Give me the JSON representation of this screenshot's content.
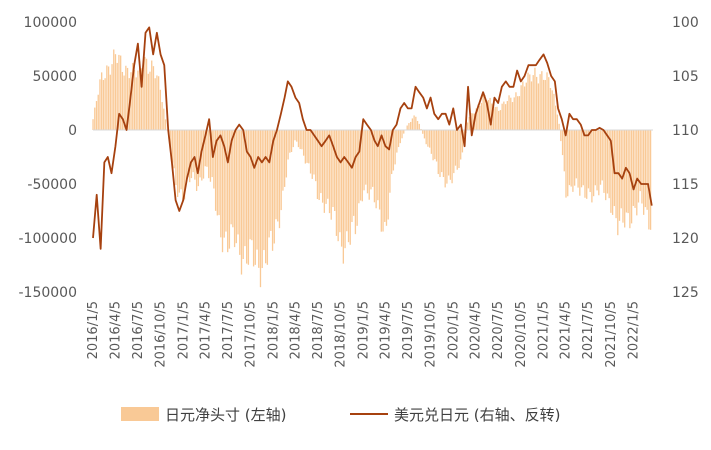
{
  "chart_data": {
    "type": "bar+line",
    "legend": {
      "placement": "bottom",
      "items": [
        {
          "name": "日元净头寸 (左轴)",
          "type": "bar",
          "color": "#f9c996"
        },
        {
          "name": "美元兑日元 (右轴、反转)",
          "type": "line",
          "color": "#a6410f"
        }
      ]
    },
    "x_axis": {
      "tick_labels": [
        "2016/1/5",
        "2016/4/5",
        "2016/7/5",
        "2016/10/5",
        "2017/1/5",
        "2017/4/5",
        "2017/7/5",
        "2017/10/5",
        "2018/1/5",
        "2018/4/5",
        "2018/7/5",
        "2018/10/5",
        "2019/1/5",
        "2019/4/5",
        "2019/7/5",
        "2019/10/5",
        "2020/1/5",
        "2020/4/5",
        "2020/7/5",
        "2020/10/5",
        "2021/1/5",
        "2021/4/5",
        "2021/7/5",
        "2021/10/5",
        "2022/1/5"
      ]
    },
    "y_left": {
      "range": [
        -150000,
        100000
      ],
      "ticks": [
        100000,
        50000,
        0,
        -50000,
        -100000,
        -150000
      ],
      "tick_labels": [
        "100000",
        "50000",
        "0",
        "-50000",
        "-100000",
        "-150000"
      ]
    },
    "y_right": {
      "range": [
        100,
        125
      ],
      "reversed": true,
      "ticks": [
        100,
        105,
        110,
        115,
        120,
        125
      ],
      "tick_labels": [
        "100",
        "105",
        "110",
        "115",
        "120",
        "125"
      ]
    },
    "bar_series": {
      "name": "日元净头寸 (左轴)",
      "note": "weekly net position, read at quarterly dates",
      "points": [
        [
          "2016/1/5",
          10000
        ],
        [
          "2016/2/5",
          45000
        ],
        [
          "2016/3/5",
          60000
        ],
        [
          "2016/4/5",
          68000
        ],
        [
          "2016/5/5",
          55000
        ],
        [
          "2016/6/5",
          60000
        ],
        [
          "2016/7/5",
          50000
        ],
        [
          "2016/8/5",
          65000
        ],
        [
          "2016/9/5",
          60000
        ],
        [
          "2016/10/5",
          35000
        ],
        [
          "2016/11/5",
          -5000
        ],
        [
          "2016/12/5",
          -50000
        ],
        [
          "2017/1/5",
          -60000
        ],
        [
          "2017/2/5",
          -45000
        ],
        [
          "2017/3/5",
          -50000
        ],
        [
          "2017/4/5",
          -35000
        ],
        [
          "2017/5/5",
          -55000
        ],
        [
          "2017/6/5",
          -90000
        ],
        [
          "2017/7/5",
          -110000
        ],
        [
          "2017/8/5",
          -100000
        ],
        [
          "2017/9/5",
          -115000
        ],
        [
          "2017/10/5",
          -120000
        ],
        [
          "2017/11/5",
          -125000
        ],
        [
          "2017/12/5",
          -115000
        ],
        [
          "2018/1/5",
          -110000
        ],
        [
          "2018/2/5",
          -70000
        ],
        [
          "2018/3/5",
          -30000
        ],
        [
          "2018/4/5",
          -10000
        ],
        [
          "2018/5/5",
          -20000
        ],
        [
          "2018/6/5",
          -40000
        ],
        [
          "2018/7/5",
          -60000
        ],
        [
          "2018/8/5",
          -65000
        ],
        [
          "2018/9/5",
          -85000
        ],
        [
          "2018/10/5",
          -105000
        ],
        [
          "2018/11/5",
          -100000
        ],
        [
          "2018/12/5",
          -95000
        ],
        [
          "2019/1/5",
          -50000
        ],
        [
          "2019/2/5",
          -60000
        ],
        [
          "2019/3/5",
          -75000
        ],
        [
          "2019/4/5",
          -90000
        ],
        [
          "2019/5/5",
          -40000
        ],
        [
          "2019/6/5",
          -10000
        ],
        [
          "2019/7/5",
          5000
        ],
        [
          "2019/8/5",
          15000
        ],
        [
          "2019/9/5",
          -5000
        ],
        [
          "2019/10/5",
          -20000
        ],
        [
          "2019/11/5",
          -40000
        ],
        [
          "2019/12/5",
          -45000
        ],
        [
          "2020/1/5",
          -45000
        ],
        [
          "2020/2/5",
          -30000
        ],
        [
          "2020/3/5",
          10000
        ],
        [
          "2020/4/5",
          20000
        ],
        [
          "2020/5/5",
          30000
        ],
        [
          "2020/6/5",
          25000
        ],
        [
          "2020/7/5",
          20000
        ],
        [
          "2020/8/5",
          25000
        ],
        [
          "2020/9/5",
          30000
        ],
        [
          "2020/10/5",
          40000
        ],
        [
          "2020/11/5",
          45000
        ],
        [
          "2020/12/5",
          55000
        ],
        [
          "2021/1/5",
          50000
        ],
        [
          "2021/2/5",
          40000
        ],
        [
          "2021/3/5",
          15000
        ],
        [
          "2021/4/5",
          -55000
        ],
        [
          "2021/5/5",
          -50000
        ],
        [
          "2021/6/5",
          -60000
        ],
        [
          "2021/7/5",
          -55000
        ],
        [
          "2021/8/5",
          -60000
        ],
        [
          "2021/9/5",
          -55000
        ],
        [
          "2021/10/5",
          -65000
        ],
        [
          "2021/11/5",
          -95000
        ],
        [
          "2021/12/5",
          -80000
        ],
        [
          "2022/1/5",
          -75000
        ],
        [
          "2022/2/5",
          -70000
        ],
        [
          "2022/3/5",
          -80000
        ]
      ]
    },
    "line_series": {
      "name": "美元兑日元 (右轴、反转)",
      "points": [
        [
          "2016/1/5",
          120
        ],
        [
          "2016/1/20",
          116
        ],
        [
          "2016/2/5",
          121
        ],
        [
          "2016/2/20",
          113
        ],
        [
          "2016/3/5",
          112.5
        ],
        [
          "2016/3/20",
          114
        ],
        [
          "2016/4/5",
          111.5
        ],
        [
          "2016/4/20",
          108.5
        ],
        [
          "2016/5/5",
          109
        ],
        [
          "2016/5/20",
          110
        ],
        [
          "2016/6/5",
          107
        ],
        [
          "2016/6/20",
          104
        ],
        [
          "2016/7/5",
          102
        ],
        [
          "2016/7/20",
          106
        ],
        [
          "2016/8/5",
          101
        ],
        [
          "2016/8/20",
          100.5
        ],
        [
          "2016/9/5",
          103
        ],
        [
          "2016/9/20",
          101
        ],
        [
          "2016/10/5",
          103
        ],
        [
          "2016/10/20",
          104
        ],
        [
          "2016/11/5",
          110
        ],
        [
          "2016/11/20",
          113
        ],
        [
          "2016/12/5",
          116.5
        ],
        [
          "2016/12/20",
          117.5
        ],
        [
          "2017/1/5",
          116.5
        ],
        [
          "2017/1/20",
          114.5
        ],
        [
          "2017/2/5",
          113
        ],
        [
          "2017/2/20",
          112.5
        ],
        [
          "2017/3/5",
          114
        ],
        [
          "2017/3/20",
          112
        ],
        [
          "2017/4/5",
          110.5
        ],
        [
          "2017/4/20",
          109
        ],
        [
          "2017/5/5",
          112.5
        ],
        [
          "2017/5/20",
          111
        ],
        [
          "2017/6/5",
          110.5
        ],
        [
          "2017/6/20",
          111.5
        ],
        [
          "2017/7/5",
          113
        ],
        [
          "2017/7/20",
          111
        ],
        [
          "2017/8/5",
          110
        ],
        [
          "2017/8/20",
          109.5
        ],
        [
          "2017/9/5",
          110
        ],
        [
          "2017/9/20",
          112
        ],
        [
          "2017/10/5",
          112.5
        ],
        [
          "2017/10/20",
          113.5
        ],
        [
          "2017/11/5",
          112.5
        ],
        [
          "2017/11/20",
          113
        ],
        [
          "2017/12/5",
          112.5
        ],
        [
          "2017/12/20",
          113
        ],
        [
          "2018/1/5",
          111
        ],
        [
          "2018/1/20",
          110
        ],
        [
          "2018/2/5",
          108.5
        ],
        [
          "2018/2/20",
          107
        ],
        [
          "2018/3/5",
          105.5
        ],
        [
          "2018/3/20",
          106
        ],
        [
          "2018/4/5",
          107
        ],
        [
          "2018/4/20",
          107.5
        ],
        [
          "2018/5/5",
          109
        ],
        [
          "2018/5/20",
          110
        ],
        [
          "2018/6/5",
          110
        ],
        [
          "2018/6/20",
          110.5
        ],
        [
          "2018/7/5",
          111
        ],
        [
          "2018/7/20",
          111.5
        ],
        [
          "2018/8/5",
          111
        ],
        [
          "2018/8/20",
          110.5
        ],
        [
          "2018/9/5",
          111.5
        ],
        [
          "2018/9/20",
          112.5
        ],
        [
          "2018/10/5",
          113
        ],
        [
          "2018/10/20",
          112.5
        ],
        [
          "2018/11/5",
          113
        ],
        [
          "2018/11/20",
          113.5
        ],
        [
          "2018/12/5",
          112.5
        ],
        [
          "2018/12/20",
          112
        ],
        [
          "2019/1/5",
          109
        ],
        [
          "2019/1/20",
          109.5
        ],
        [
          "2019/2/5",
          110
        ],
        [
          "2019/2/20",
          111
        ],
        [
          "2019/3/5",
          111.5
        ],
        [
          "2019/3/20",
          110.5
        ],
        [
          "2019/4/5",
          111.5
        ],
        [
          "2019/4/20",
          111.8
        ],
        [
          "2019/5/5",
          110
        ],
        [
          "2019/5/20",
          109.5
        ],
        [
          "2019/6/5",
          108
        ],
        [
          "2019/6/20",
          107.5
        ],
        [
          "2019/7/5",
          108
        ],
        [
          "2019/7/20",
          108
        ],
        [
          "2019/8/5",
          106
        ],
        [
          "2019/8/20",
          106.5
        ],
        [
          "2019/9/5",
          107
        ],
        [
          "2019/9/20",
          108
        ],
        [
          "2019/10/5",
          107
        ],
        [
          "2019/10/20",
          108.5
        ],
        [
          "2019/11/5",
          109
        ],
        [
          "2019/11/20",
          108.5
        ],
        [
          "2019/12/5",
          108.5
        ],
        [
          "2019/12/20",
          109.5
        ],
        [
          "2020/1/5",
          108
        ],
        [
          "2020/1/20",
          110
        ],
        [
          "2020/2/5",
          109.5
        ],
        [
          "2020/2/20",
          111.5
        ],
        [
          "2020/3/5",
          106
        ],
        [
          "2020/3/20",
          110.5
        ],
        [
          "2020/4/5",
          108.5
        ],
        [
          "2020/4/20",
          107.5
        ],
        [
          "2020/5/5",
          106.5
        ],
        [
          "2020/5/20",
          107.5
        ],
        [
          "2020/6/5",
          109.5
        ],
        [
          "2020/6/20",
          107
        ],
        [
          "2020/7/5",
          107.5
        ],
        [
          "2020/7/20",
          106
        ],
        [
          "2020/8/5",
          105.5
        ],
        [
          "2020/8/20",
          106
        ],
        [
          "2020/9/5",
          106
        ],
        [
          "2020/9/20",
          104.5
        ],
        [
          "2020/10/5",
          105.5
        ],
        [
          "2020/10/20",
          105
        ],
        [
          "2020/11/5",
          104
        ],
        [
          "2020/11/20",
          104
        ],
        [
          "2020/12/5",
          104
        ],
        [
          "2020/12/20",
          103.5
        ],
        [
          "2021/1/5",
          103
        ],
        [
          "2021/1/20",
          103.8
        ],
        [
          "2021/2/5",
          105
        ],
        [
          "2021/2/20",
          105.5
        ],
        [
          "2021/3/5",
          108
        ],
        [
          "2021/3/20",
          109
        ],
        [
          "2021/4/5",
          110.5
        ],
        [
          "2021/4/20",
          108.5
        ],
        [
          "2021/5/5",
          109
        ],
        [
          "2021/5/20",
          109
        ],
        [
          "2021/6/5",
          109.5
        ],
        [
          "2021/6/20",
          110.5
        ],
        [
          "2021/7/5",
          110.5
        ],
        [
          "2021/7/20",
          110
        ],
        [
          "2021/8/5",
          110
        ],
        [
          "2021/8/20",
          109.8
        ],
        [
          "2021/9/5",
          110
        ],
        [
          "2021/9/20",
          110.5
        ],
        [
          "2021/10/5",
          111
        ],
        [
          "2021/10/20",
          114
        ],
        [
          "2021/11/5",
          114
        ],
        [
          "2021/11/20",
          114.5
        ],
        [
          "2021/12/5",
          113.5
        ],
        [
          "2021/12/20",
          114
        ],
        [
          "2022/1/5",
          115.5
        ],
        [
          "2022/1/20",
          114.5
        ],
        [
          "2022/2/5",
          115
        ],
        [
          "2022/2/20",
          115
        ],
        [
          "2022/3/5",
          115
        ],
        [
          "2022/3/20",
          117
        ]
      ]
    }
  }
}
